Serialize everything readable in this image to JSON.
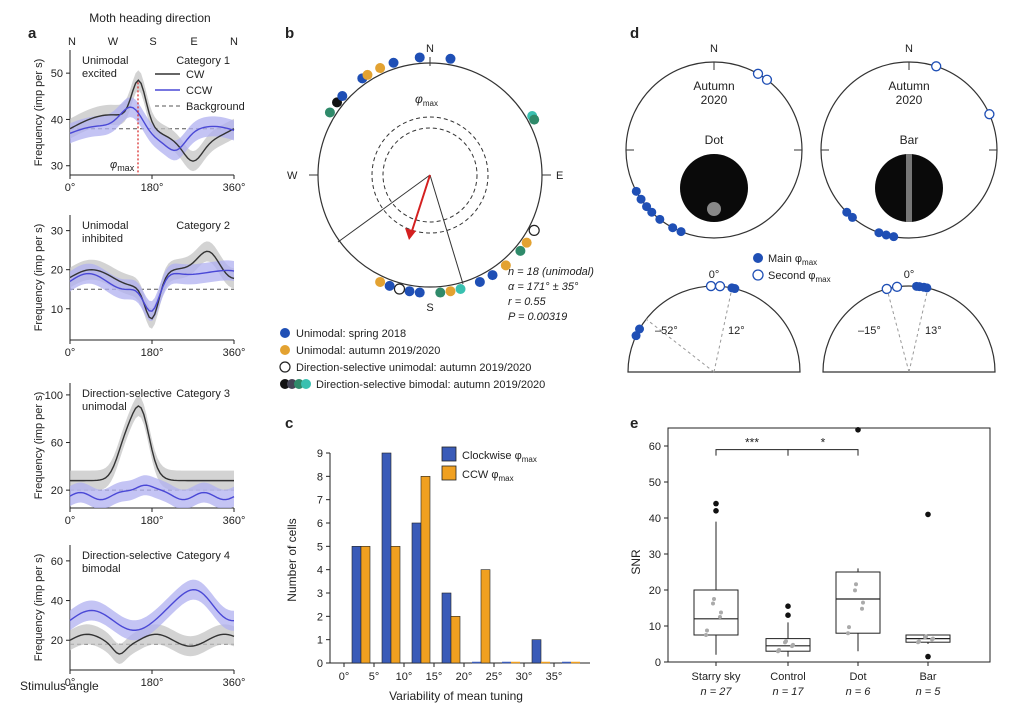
{
  "panel_labels": {
    "a": "a",
    "b": "b",
    "c": "c",
    "d": "d",
    "e": "e"
  },
  "panel_a": {
    "top_title": "Moth heading direction",
    "compass": [
      "N",
      "W",
      "S",
      "E",
      "N"
    ],
    "ylabel": "Frequency (imp per s)",
    "xlabel": "Stimulus angle",
    "xticks": [
      "0°",
      "180°",
      "360°"
    ],
    "legend": {
      "cw": "CW",
      "ccw": "CCW",
      "bg": "Background"
    },
    "phi_label": "φ",
    "phi_sub": "max",
    "colors": {
      "cw": "#333333",
      "ccw": "#4a48d6",
      "cw_band": "#c4c4c4",
      "ccw_band": "#b0b0f0",
      "phi": "#d42020"
    },
    "subplots": [
      {
        "label1": "Unimodal",
        "label2": "excited",
        "category": "Category 1",
        "yticks": [
          "30",
          "40",
          "50"
        ],
        "ylim": [
          28,
          55
        ],
        "background": 38
      },
      {
        "label1": "Unimodal",
        "label2": "inhibited",
        "category": "Category 2",
        "yticks": [
          "10",
          "20",
          "30"
        ],
        "ylim": [
          2,
          34
        ],
        "background": 15
      },
      {
        "label1": "Direction-selective",
        "label2": "unimodal",
        "category": "Category 3",
        "yticks": [
          "20",
          "60",
          "100"
        ],
        "ylim": [
          5,
          110
        ],
        "background": 20
      },
      {
        "label1": "Direction-selective",
        "label2": "bimodal",
        "category": "Category 4",
        "yticks": [
          "20",
          "40",
          "60"
        ],
        "ylim": [
          5,
          68
        ],
        "background": 18
      }
    ]
  },
  "panel_b": {
    "compass": {
      "n": "N",
      "s": "S",
      "e": "E",
      "w": "W"
    },
    "phi_label": "φ",
    "phi_sub": "max",
    "stats": [
      "n = 18 (unimodal)",
      "α = 171° ± 35°",
      "r = 0.55",
      "P = 0.00319"
    ],
    "legend": [
      {
        "label": "Unimodal: spring 2018",
        "kind": "blue"
      },
      {
        "label": "Unimodal: autumn 2019/2020",
        "kind": "orange"
      },
      {
        "label": "Direction-selective unimodal: autumn 2019/2020",
        "kind": "open"
      },
      {
        "label": "Direction-selective bimodal: autumn 2019/2020",
        "kind": "multi"
      }
    ],
    "colors": {
      "blue": "#1f4fb5",
      "orange": "#e3a231",
      "arrow": "#d42020"
    }
  },
  "panel_c": {
    "ylabel": "Number of cells",
    "xlabel": "Variability of mean tuning",
    "legend": {
      "cw": "Clockwise φ",
      "ccw": "CCW φ",
      "sub": "max"
    },
    "colors": {
      "cw": "#3a5bb8",
      "ccw": "#f0a020"
    },
    "chart_data": {
      "type": "bar",
      "categories": [
        "0°",
        "5°",
        "10°",
        "15°",
        "20°",
        "25°",
        "30°",
        "35°"
      ],
      "series": [
        {
          "name": "Clockwise φmax",
          "values": [
            5,
            9,
            6,
            3,
            0,
            0,
            1,
            0
          ]
        },
        {
          "name": "CCW φmax",
          "values": [
            5,
            5,
            8,
            2,
            4,
            0,
            0,
            0
          ]
        }
      ],
      "ylim": [
        0,
        9
      ],
      "yticks": [
        "0",
        "1",
        "2",
        "3",
        "4",
        "5",
        "6",
        "7",
        "8",
        "9"
      ]
    }
  },
  "panel_d": {
    "north": "N",
    "season": "Autumn",
    "year": "2020",
    "dot_label": "Dot",
    "bar_label": "Bar",
    "legend_main": "Main φ",
    "legend_second": "Second φ",
    "legend_sub": "max",
    "zero": "0°",
    "dot_angles": [
      "–52°",
      "12°"
    ],
    "bar_angles": [
      "–15°",
      "13°"
    ],
    "color": "#1f4fb5"
  },
  "panel_e": {
    "ylabel": "SNR",
    "yticks": [
      "0",
      "10",
      "20",
      "30",
      "40",
      "50",
      "60"
    ],
    "groups": [
      {
        "name": "Starry sky",
        "n": "n = 27"
      },
      {
        "name": "Control",
        "n": "n = 17"
      },
      {
        "name": "Dot",
        "n": "n = 6"
      },
      {
        "name": "Bar",
        "n": "n = 5"
      }
    ],
    "sig1": "***",
    "sig2": "*",
    "chart_data": {
      "type": "box",
      "categories": [
        "Starry sky",
        "Control",
        "Dot",
        "Bar"
      ],
      "boxes": [
        {
          "q1": 7.5,
          "median": 12,
          "q3": 20,
          "lo": 2,
          "hi": 39,
          "outliers": [
            42,
            44
          ]
        },
        {
          "q1": 3,
          "median": 4.5,
          "q3": 6.5,
          "lo": 1.5,
          "hi": 11,
          "outliers": [
            13,
            15.5
          ]
        },
        {
          "q1": 8,
          "median": 17.5,
          "q3": 25,
          "lo": 3,
          "hi": 26,
          "outliers": [
            64.5
          ]
        },
        {
          "q1": 5.5,
          "median": 6.5,
          "q3": 7.5,
          "lo": 5,
          "hi": 7.5,
          "outliers": [
            41,
            1.5
          ]
        }
      ],
      "ylim": [
        0,
        65
      ]
    }
  }
}
